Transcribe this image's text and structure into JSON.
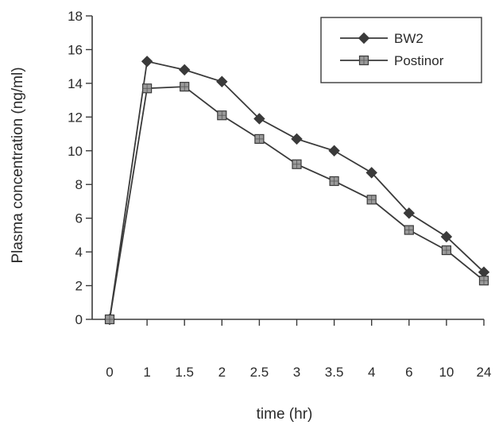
{
  "chart_data": {
    "type": "line",
    "title": "",
    "xlabel": "time (hr)",
    "ylabel": "Plasma concentration (ng/ml)",
    "categories": [
      "0",
      "1",
      "1.5",
      "2",
      "2.5",
      "3",
      "3.5",
      "4",
      "6",
      "10",
      "24"
    ],
    "ylim": [
      0,
      18
    ],
    "yticks": [
      "0",
      "2",
      "4",
      "6",
      "8",
      "10",
      "12",
      "14",
      "16",
      "18"
    ],
    "grid": false,
    "legend_position": "top-right",
    "series": [
      {
        "name": "BW2",
        "marker": "diamond",
        "color": "#3a3a3a",
        "values": [
          0,
          15.3,
          14.8,
          14.1,
          11.9,
          10.7,
          10.0,
          8.7,
          6.3,
          4.9,
          2.8
        ]
      },
      {
        "name": "Postinor",
        "marker": "square",
        "color": "#3a3a3a",
        "values": [
          0,
          13.7,
          13.8,
          12.1,
          10.7,
          9.2,
          8.2,
          7.1,
          5.3,
          4.1,
          2.3
        ]
      }
    ]
  }
}
